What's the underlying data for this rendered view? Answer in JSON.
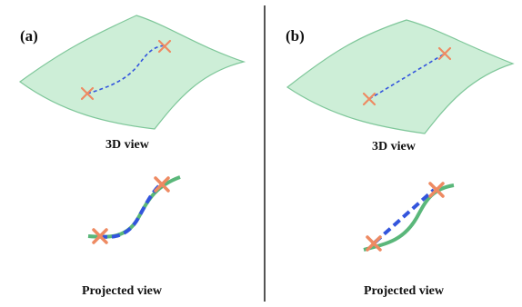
{
  "panels": [
    {
      "label": "(a)",
      "caption_3d": "3D view",
      "caption_projected": "Projected view"
    },
    {
      "label": "(b)",
      "caption_3d": "3D view",
      "caption_projected": "Projected view"
    }
  ],
  "colors": {
    "surface_fill": "#cdeed7",
    "surface_stroke": "#7fc79a",
    "path_blue": "#3355dd",
    "curve_green": "#5ab77a",
    "marker_orange": "#ee8a62",
    "divider": "#555555"
  },
  "icons": {
    "endpoint_marker": "x-mark-icon"
  }
}
